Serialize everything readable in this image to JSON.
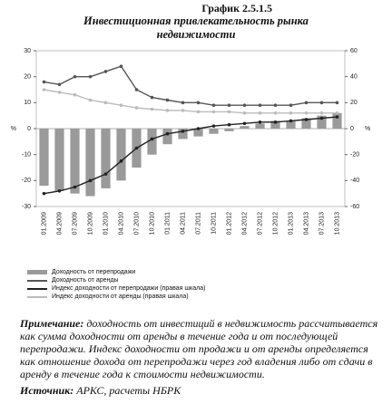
{
  "figure_label": "График 2.5.1.5",
  "chart_data": {
    "type": "bar",
    "title": "Инвестиционная привлекательность рынка недвижимости",
    "categories": [
      "01.2009",
      "04.2009",
      "07.2009",
      "10.2009",
      "01.2010",
      "04.2010",
      "07.2010",
      "10.2010",
      "01.2011",
      "04.2011",
      "07.2011",
      "10.2011",
      "01.2012",
      "04.2012",
      "07.2012",
      "10.2012",
      "01.2013",
      "04.2013",
      "07.2013",
      "10.2013"
    ],
    "series": [
      {
        "name": "Доходность от перепродажи",
        "type": "bar",
        "color": "#9a9a9a",
        "values": [
          -22,
          -24,
          -25,
          -26,
          -23,
          -20,
          -15,
          -10,
          -6,
          -4,
          -3,
          -2,
          -1,
          1,
          2,
          3,
          3,
          4,
          5,
          6
        ]
      },
      {
        "name": "Доходность от аренды",
        "type": "line",
        "color": "#555555",
        "values": [
          18,
          17,
          20,
          20,
          22,
          24,
          15,
          12,
          11,
          10,
          10,
          9,
          9,
          9,
          9,
          9,
          9,
          10,
          10,
          10
        ]
      },
      {
        "name": "Индекс доходности от перепродажи (правая шкала)",
        "type": "line",
        "color": "#222222",
        "axis": "y2",
        "values": [
          -50,
          -48,
          -45,
          -40,
          -35,
          -25,
          -15,
          -8,
          -4,
          -2,
          0,
          2,
          3,
          4,
          5,
          5,
          6,
          7,
          8,
          9
        ]
      },
      {
        "name": "Индекс доходности от аренды (правая шкала)",
        "type": "line",
        "color": "#bbbbbb",
        "axis": "y2",
        "values": [
          30,
          28,
          26,
          22,
          20,
          18,
          16,
          15,
          14,
          14,
          13,
          13,
          13,
          12,
          12,
          12,
          12,
          12,
          12,
          12
        ]
      }
    ],
    "ylim": [
      -30,
      30
    ],
    "yticks": [
      -30,
      -20,
      -10,
      0,
      10,
      20,
      30
    ],
    "y2lim": [
      -60,
      60
    ],
    "y2ticks": [
      -60,
      -40,
      -20,
      0,
      20,
      40,
      60
    ],
    "y2unit": "%",
    "yunit": "%"
  },
  "note": {
    "label": "Примечание:",
    "text": "доходность от инвестиций в недвижимость рассчитывается как сумма доходности от аренды в течение года и от последующей перепродажи. Индекс доходности от продажи и от аренды определяется как отношение дохода от перепродажи через год владения либо от сдачи в аренду в течение года к стоимости недвижимости."
  },
  "source": {
    "label": "Источник:",
    "text": "АРКС, расчеты НБРК"
  }
}
